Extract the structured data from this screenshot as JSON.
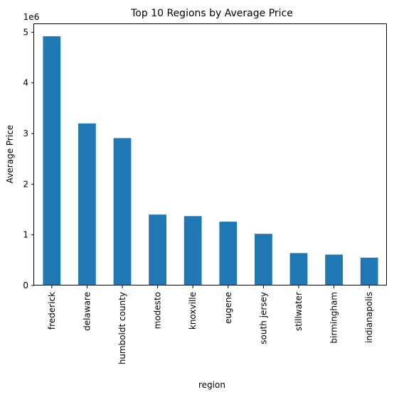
{
  "chart_data": {
    "type": "bar",
    "title": "Top 10 Regions by Average Price",
    "xlabel": "region",
    "ylabel": "Average Price",
    "y_scale_label": "1e6",
    "categories": [
      "frederick",
      "delaware",
      "humboldt county",
      "modesto",
      "knoxville",
      "eugene",
      "south jersey",
      "stillwater",
      "birmingham",
      "indianapolis"
    ],
    "values": [
      4920000,
      3200000,
      2910000,
      1400000,
      1370000,
      1260000,
      1020000,
      640000,
      610000,
      550000
    ],
    "ylim": [
      0,
      5160000
    ],
    "yticks": [
      0,
      1000000,
      2000000,
      3000000,
      4000000,
      5000000
    ],
    "ytick_labels": [
      "0",
      "1",
      "2",
      "3",
      "4",
      "5"
    ],
    "bar_color": "#1f77b4",
    "grid": false,
    "legend": "none"
  }
}
